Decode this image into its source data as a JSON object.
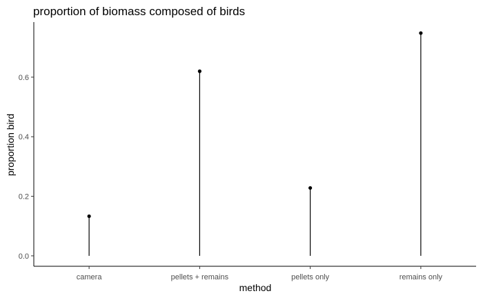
{
  "chart_data": {
    "type": "lollipop",
    "title": "proportion of biomass composed of birds",
    "xlabel": "method",
    "ylabel": "proportion bird",
    "categories": [
      "camera",
      "pellets + remains",
      "pellets only",
      "remains only"
    ],
    "values": [
      0.133,
      0.62,
      0.228,
      0.748
    ],
    "ylim": [
      -0.035,
      0.785
    ],
    "yticks": [
      0.0,
      0.2,
      0.4,
      0.6
    ],
    "ytick_labels": [
      "0.0",
      "0.2",
      "0.4",
      "0.6"
    ],
    "grid": false,
    "legend": "none",
    "colors": {
      "marks": "#000000",
      "axis": "#000000",
      "tick_text": "#4d4d4d"
    }
  }
}
